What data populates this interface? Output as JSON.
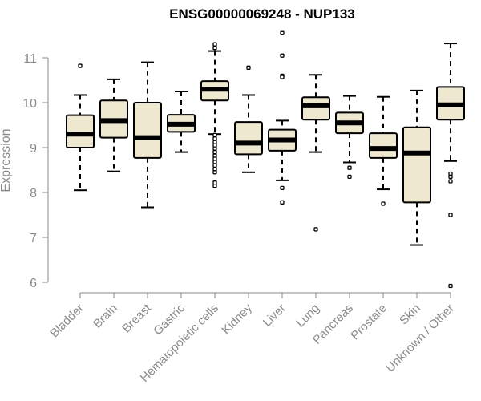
{
  "chart_data": {
    "type": "box",
    "title": "ENSG00000069248 - NUP133",
    "ylabel": "Expression",
    "xlabel": "",
    "ylim": [
      5.8,
      11.5
    ],
    "yticks": [
      6,
      7,
      8,
      9,
      10,
      11
    ],
    "box_fill": "#efe8d0",
    "categories": [
      "Bladder",
      "Brain",
      "Breast",
      "Gastric",
      "Hematopoietic cells",
      "Kidney",
      "Liver",
      "Lung",
      "Pancreas",
      "Prostate",
      "Skin",
      "Unknown / Other"
    ],
    "boxes": [
      {
        "min": 8.05,
        "q1": 9.0,
        "median": 9.3,
        "q3": 9.72,
        "max": 10.17,
        "outliers": [
          10.82
        ]
      },
      {
        "min": 8.47,
        "q1": 9.22,
        "median": 9.6,
        "q3": 10.05,
        "max": 10.52,
        "outliers": []
      },
      {
        "min": 7.67,
        "q1": 8.77,
        "median": 9.22,
        "q3": 10.0,
        "max": 10.9,
        "outliers": []
      },
      {
        "min": 8.9,
        "q1": 9.35,
        "median": 9.52,
        "q3": 9.73,
        "max": 10.25,
        "outliers": []
      },
      {
        "min": 9.3,
        "q1": 10.05,
        "median": 10.3,
        "q3": 10.48,
        "max": 11.15,
        "outliers": [
          11.22,
          11.3,
          9.28,
          9.2,
          9.12,
          9.05,
          8.98,
          8.9,
          8.82,
          8.75,
          8.68,
          8.6,
          8.52,
          8.45,
          8.22,
          8.15
        ]
      },
      {
        "min": 8.45,
        "q1": 8.85,
        "median": 9.1,
        "q3": 9.57,
        "max": 10.17,
        "outliers": [
          10.78
        ]
      },
      {
        "min": 8.27,
        "q1": 8.93,
        "median": 9.17,
        "q3": 9.4,
        "max": 9.6,
        "outliers": [
          11.55,
          11.05,
          10.6,
          10.57,
          8.1,
          7.78
        ]
      },
      {
        "min": 8.9,
        "q1": 9.62,
        "median": 9.93,
        "q3": 10.12,
        "max": 10.62,
        "outliers": [
          7.18
        ]
      },
      {
        "min": 8.67,
        "q1": 9.32,
        "median": 9.55,
        "q3": 9.78,
        "max": 10.15,
        "outliers": [
          8.55,
          8.35
        ]
      },
      {
        "min": 8.07,
        "q1": 8.77,
        "median": 8.98,
        "q3": 9.32,
        "max": 10.13,
        "outliers": [
          7.75
        ]
      },
      {
        "min": 6.83,
        "q1": 7.78,
        "median": 8.88,
        "q3": 9.45,
        "max": 10.27,
        "outliers": []
      },
      {
        "min": 8.7,
        "q1": 9.62,
        "median": 9.95,
        "q3": 10.35,
        "max": 11.32,
        "outliers": [
          8.42,
          8.35,
          8.25,
          7.5,
          5.92
        ]
      }
    ]
  }
}
